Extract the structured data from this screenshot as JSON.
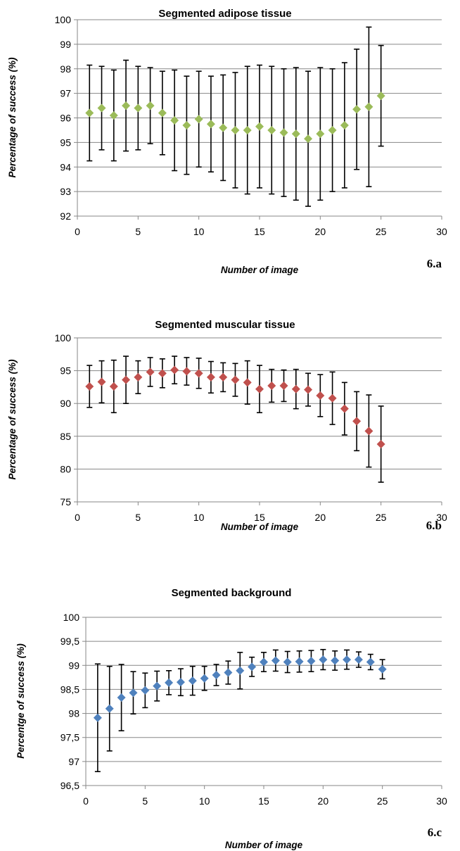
{
  "chart_data": [
    {
      "type": "scatter",
      "title": "Segmented adipose tissue",
      "xlabel": "Number of image",
      "ylabel": "Percentage of success (%)",
      "panel_label": "6.a",
      "xlim": [
        0,
        30
      ],
      "ylim": [
        92,
        100
      ],
      "xticks": [
        "0",
        "5",
        "10",
        "15",
        "20",
        "25",
        "30"
      ],
      "yticks": [
        "92",
        "93",
        "94",
        "95",
        "96",
        "97",
        "98",
        "99",
        "100"
      ],
      "grid": "horizontal",
      "marker": "diamond",
      "color": "#9bbb59",
      "x": [
        1,
        2,
        3,
        4,
        5,
        6,
        7,
        8,
        9,
        10,
        11,
        12,
        13,
        14,
        15,
        16,
        17,
        18,
        19,
        20,
        21,
        22,
        23,
        24,
        25
      ],
      "y": [
        96.2,
        96.4,
        96.1,
        96.5,
        96.4,
        96.5,
        96.2,
        95.9,
        95.7,
        95.95,
        95.75,
        95.6,
        95.5,
        95.5,
        95.65,
        95.5,
        95.4,
        95.35,
        95.15,
        95.35,
        95.5,
        95.7,
        96.35,
        96.45,
        96.9
      ],
      "yerr": [
        1.95,
        1.7,
        1.85,
        1.85,
        1.7,
        1.55,
        1.7,
        2.05,
        2.0,
        1.95,
        1.95,
        2.15,
        2.35,
        2.6,
        2.5,
        2.6,
        2.6,
        2.7,
        2.75,
        2.7,
        2.5,
        2.55,
        2.45,
        3.25,
        2.05
      ]
    },
    {
      "type": "scatter",
      "title": "Segmented muscular tissue",
      "xlabel": "Number of image",
      "ylabel": "Percentage of success (%)",
      "panel_label": "6.b",
      "xlim": [
        0,
        30
      ],
      "ylim": [
        75,
        100
      ],
      "xticks": [
        "0",
        "5",
        "10",
        "15",
        "20",
        "25",
        "30"
      ],
      "yticks": [
        "75",
        "80",
        "85",
        "90",
        "95",
        "100"
      ],
      "grid": "horizontal",
      "marker": "diamond",
      "color": "#c0504d",
      "x": [
        1,
        2,
        3,
        4,
        5,
        6,
        7,
        8,
        9,
        10,
        11,
        12,
        13,
        14,
        15,
        16,
        17,
        18,
        19,
        20,
        21,
        22,
        23,
        24,
        25
      ],
      "y": [
        92.6,
        93.3,
        92.6,
        93.6,
        94.0,
        94.8,
        94.6,
        95.1,
        94.9,
        94.6,
        94.0,
        94.0,
        93.6,
        93.2,
        92.2,
        92.7,
        92.7,
        92.2,
        92.1,
        91.2,
        90.8,
        89.2,
        87.3,
        85.8,
        83.8
      ],
      "yerr": [
        3.2,
        3.2,
        4.0,
        3.6,
        2.5,
        2.2,
        2.2,
        2.1,
        2.1,
        2.3,
        2.4,
        2.2,
        2.5,
        3.3,
        3.6,
        2.5,
        2.4,
        3.0,
        2.5,
        3.2,
        4.0,
        4.0,
        4.5,
        5.5,
        5.8
      ]
    },
    {
      "type": "scatter",
      "title": "Segmented background",
      "xlabel": "Number of image",
      "ylabel": "Percentge of success (%)",
      "panel_label": "6.c",
      "xlim": [
        0,
        30
      ],
      "ylim": [
        96.5,
        100
      ],
      "xticks": [
        "0",
        "5",
        "10",
        "15",
        "20",
        "25",
        "30"
      ],
      "yticks": [
        "96,5",
        "97",
        "97,5",
        "98",
        "98,5",
        "99",
        "99,5",
        "100"
      ],
      "grid": "horizontal",
      "marker": "diamond",
      "color": "#4f81bd",
      "x": [
        1,
        2,
        3,
        4,
        5,
        6,
        7,
        8,
        9,
        10,
        11,
        12,
        13,
        14,
        15,
        16,
        17,
        18,
        19,
        20,
        21,
        22,
        23,
        24,
        25
      ],
      "y": [
        97.91,
        98.1,
        98.33,
        98.43,
        98.48,
        98.57,
        98.64,
        98.65,
        98.68,
        98.73,
        98.8,
        98.85,
        98.89,
        98.97,
        99.07,
        99.1,
        99.07,
        99.08,
        99.09,
        99.12,
        99.1,
        99.12,
        99.12,
        99.07,
        98.92
      ],
      "yerr": [
        1.12,
        0.88,
        0.69,
        0.44,
        0.36,
        0.31,
        0.25,
        0.28,
        0.3,
        0.25,
        0.22,
        0.24,
        0.38,
        0.2,
        0.2,
        0.22,
        0.22,
        0.22,
        0.22,
        0.21,
        0.2,
        0.2,
        0.16,
        0.16,
        0.2
      ]
    }
  ]
}
